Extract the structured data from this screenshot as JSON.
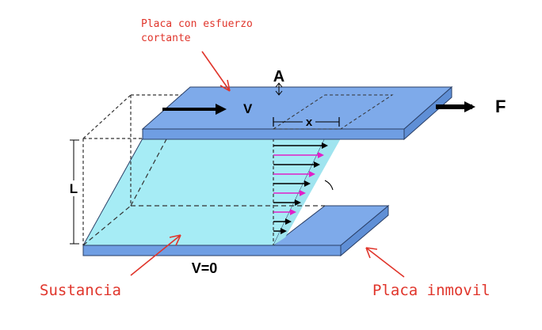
{
  "annotations": {
    "top_plate_line1": "Placa con esfuerzo",
    "top_plate_line2": "cortante",
    "substance": "Sustancia",
    "fixed_plate": "Placa inmovil"
  },
  "labels": {
    "area": "A",
    "velocity": "V",
    "force": "F",
    "displacement": "x",
    "length": "L",
    "bottom_velocity": "V=0"
  },
  "colors": {
    "plate_fill": "#78a5e6",
    "fluid_fill": "#a6ecf5",
    "annotation": "#e0352b",
    "arrow_magenta": "#e020c8",
    "arrow_black": "#000000"
  },
  "icons": {
    "force_arrow": "arrow-right",
    "velocity_arrow": "arrow-right",
    "annotation_pointer": "arrow-pointer"
  }
}
